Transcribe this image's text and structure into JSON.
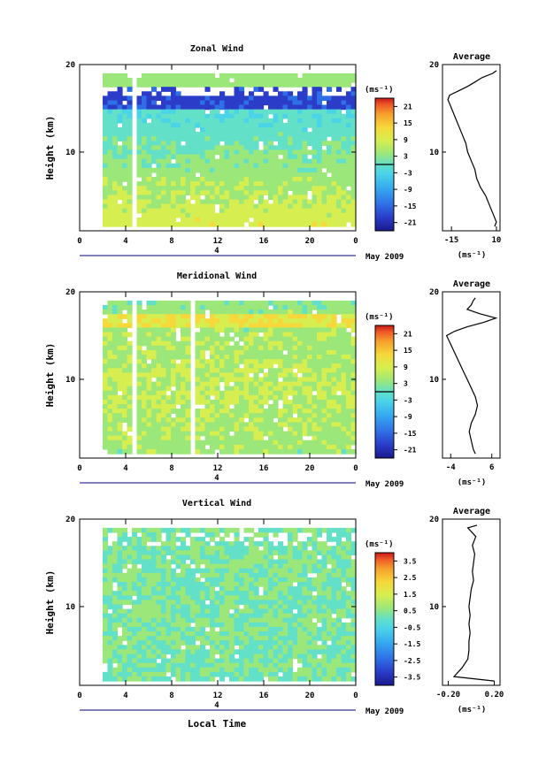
{
  "chart_data": [
    {
      "type": "heatmap",
      "title": "Zonal Wind",
      "ylabel": "Height (km)",
      "ylim": [
        1,
        20
      ],
      "xlim": [
        0,
        24
      ],
      "x_ticks": [
        "0",
        "4",
        "8",
        "12",
        "16",
        "20",
        "0"
      ],
      "y_ticks": [
        "20",
        "10"
      ],
      "date_axis": {
        "day": "4",
        "month_label": "May 2009"
      },
      "colorbar": {
        "unit": "(ms⁻¹)",
        "ticks": [
          "21",
          "15",
          "9",
          "3",
          "-3",
          "-9",
          "-15",
          "-21"
        ],
        "range": [
          -24,
          24
        ]
      },
      "profile": {
        "title": "Average",
        "xlabel": "(ms⁻¹)",
        "x_ticks": [
          "-15",
          "10"
        ],
        "xlim": [
          -20,
          12
        ],
        "height": [
          1.5,
          2,
          3,
          4,
          5,
          6,
          7,
          8,
          9,
          10,
          11,
          12,
          13,
          14,
          15,
          16,
          16.5,
          17,
          17.5,
          18,
          18.5,
          19,
          19.3
        ],
        "value": [
          9,
          10,
          8,
          6,
          4,
          1,
          -1,
          -2,
          -4,
          -6,
          -7,
          -9,
          -11,
          -13,
          -15,
          -17,
          -16,
          -11,
          -6,
          -2,
          2,
          8,
          10
        ]
      }
    },
    {
      "type": "heatmap",
      "title": "Meridional Wind",
      "ylabel": "Height (km)",
      "ylim": [
        1,
        20
      ],
      "xlim": [
        0,
        24
      ],
      "x_ticks": [
        "0",
        "4",
        "8",
        "12",
        "16",
        "20",
        "0"
      ],
      "y_ticks": [
        "20",
        "10"
      ],
      "date_axis": {
        "day": "4",
        "month_label": "May 2009"
      },
      "colorbar": {
        "unit": "(ms⁻¹)",
        "ticks": [
          "21",
          "15",
          "9",
          "3",
          "-3",
          "-9",
          "-15",
          "-21"
        ],
        "range": [
          -24,
          24
        ]
      },
      "profile": {
        "title": "Average",
        "xlabel": "(ms⁻¹)",
        "x_ticks": [
          "-4",
          "6"
        ],
        "xlim": [
          -6,
          8
        ],
        "height": [
          1.5,
          2,
          3,
          4,
          5,
          6,
          7,
          8,
          9,
          10,
          11,
          12,
          13,
          14,
          15,
          15.5,
          16,
          16.5,
          17,
          17.5,
          18,
          18.5,
          19,
          19.3
        ],
        "value": [
          2,
          1.5,
          1,
          0.5,
          1,
          2,
          2.5,
          2,
          1,
          0,
          -1,
          -2,
          -3,
          -4,
          -5,
          -3,
          0,
          4,
          7,
          3,
          0,
          1,
          1.5,
          2
        ]
      }
    },
    {
      "type": "heatmap",
      "title": "Vertical Wind",
      "ylabel": "Height (km)",
      "xlabel": "Local Time",
      "ylim": [
        1,
        20
      ],
      "xlim": [
        0,
        24
      ],
      "x_ticks": [
        "0",
        "4",
        "8",
        "12",
        "16",
        "20",
        "0"
      ],
      "y_ticks": [
        "20",
        "10"
      ],
      "date_axis": {
        "day": "4",
        "month_label": "May 2009"
      },
      "colorbar": {
        "unit": "(ms⁻¹)",
        "ticks": [
          "3.5",
          "2.5",
          "1.5",
          "0.5",
          "-0.5",
          "-1.5",
          "-2.5",
          "-3.5"
        ],
        "range": [
          -4,
          4
        ]
      },
      "profile": {
        "title": "Average",
        "xlabel": "(ms⁻¹)",
        "x_ticks": [
          "-0.20",
          "0.20"
        ],
        "xlim": [
          -0.25,
          0.25
        ],
        "height": [
          1.5,
          2,
          3,
          4,
          5,
          6,
          7,
          8,
          9,
          10,
          11,
          12,
          13,
          14,
          15,
          16,
          17,
          18,
          19,
          19.3
        ],
        "value": [
          0.2,
          -0.15,
          -0.08,
          -0.03,
          -0.02,
          -0.02,
          -0.01,
          -0.02,
          -0.01,
          -0.02,
          -0.01,
          0.0,
          0.02,
          0.01,
          0.02,
          0.03,
          0.01,
          0.04,
          -0.03,
          0.05
        ]
      }
    }
  ],
  "colors": {
    "colormap": [
      "#1a1a8c",
      "#2a3cc8",
      "#2f6fe6",
      "#35a8f0",
      "#4ad4e8",
      "#62e0c8",
      "#9be77a",
      "#d6ee50",
      "#f6d83a",
      "#f6a02e",
      "#ef5a28",
      "#c81818"
    ],
    "contour": "#000000",
    "axis": "#000000",
    "date_axis": "#000080"
  }
}
